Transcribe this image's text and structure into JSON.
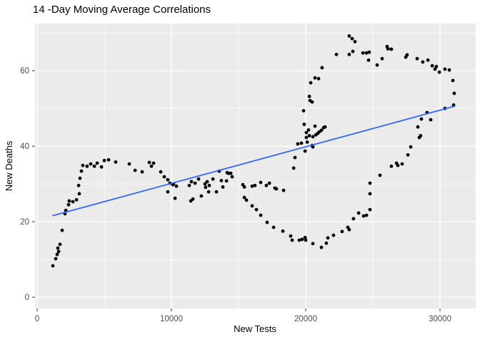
{
  "chart_data": {
    "type": "scatter",
    "title": "14 -Day Moving Average Correlations",
    "xlabel": "New Tests",
    "ylabel": "New Deaths",
    "legend": "none",
    "grid": "major+minor",
    "xlim": [
      -160,
      32660
    ],
    "ylim": [
      -3,
      72.5
    ],
    "x_ticks": [
      0,
      10000,
      20000,
      30000
    ],
    "x_tick_labels": [
      "0",
      "10000",
      "20000",
      "30000"
    ],
    "y_ticks": [
      0,
      20,
      40,
      60
    ],
    "y_tick_labels": [
      "0",
      "20",
      "40",
      "60"
    ],
    "x_minor_ticks": [
      5000,
      15000,
      25000
    ],
    "y_minor_ticks": [
      10,
      30,
      50,
      70
    ],
    "colors": {
      "background": "#FFFFFF",
      "panel_bg": "#EBEBEB",
      "grid_major": "#FFFFFF",
      "grid_minor": "#FFFFFF",
      "point": "#000000",
      "trend_line": "#3366FF",
      "tick_mark": "#333333",
      "tick_text": "#4D4D4D",
      "axis_title": "#000000",
      "title": "#000000"
    },
    "trend_line": {
      "type": "linear",
      "x": [
        1170,
        31100
      ],
      "y": [
        21.6,
        50.6
      ]
    },
    "points": [
      [
        1170,
        8.3
      ],
      [
        1380,
        10.2
      ],
      [
        1490,
        11.3
      ],
      [
        1540,
        13.0
      ],
      [
        1600,
        12.1
      ],
      [
        1700,
        14.0
      ],
      [
        1860,
        17.7
      ],
      [
        2070,
        22.1
      ],
      [
        2130,
        23.0
      ],
      [
        2340,
        24.5
      ],
      [
        2390,
        25.5
      ],
      [
        2660,
        25.3
      ],
      [
        2930,
        25.8
      ],
      [
        3140,
        27.4
      ],
      [
        3090,
        29.6
      ],
      [
        3190,
        31.5
      ],
      [
        3300,
        33.4
      ],
      [
        3400,
        34.9
      ],
      [
        3720,
        34.7
      ],
      [
        3990,
        35.3
      ],
      [
        4260,
        34.7
      ],
      [
        4470,
        35.5
      ],
      [
        4790,
        34.5
      ],
      [
        5000,
        36.2
      ],
      [
        5320,
        36.4
      ],
      [
        5850,
        35.8
      ],
      [
        6860,
        35.3
      ],
      [
        7290,
        33.6
      ],
      [
        7820,
        33.2
      ],
      [
        8350,
        35.7
      ],
      [
        8510,
        34.7
      ],
      [
        8670,
        35.5
      ],
      [
        9200,
        33.2
      ],
      [
        9470,
        31.9
      ],
      [
        9730,
        31.1
      ],
      [
        9890,
        30.2
      ],
      [
        10110,
        29.8
      ],
      [
        10160,
        30.0
      ],
      [
        10370,
        29.4
      ],
      [
        9730,
        27.9
      ],
      [
        10270,
        26.2
      ],
      [
        11330,
        29.6
      ],
      [
        11490,
        30.6
      ],
      [
        11440,
        25.5
      ],
      [
        11600,
        26.0
      ],
      [
        11760,
        30.2
      ],
      [
        12020,
        31.3
      ],
      [
        12230,
        26.8
      ],
      [
        12500,
        30.0
      ],
      [
        12550,
        29.1
      ],
      [
        12660,
        30.6
      ],
      [
        12770,
        27.9
      ],
      [
        12820,
        29.6
      ],
      [
        13090,
        31.3
      ],
      [
        13350,
        27.9
      ],
      [
        13560,
        33.4
      ],
      [
        13720,
        30.9
      ],
      [
        13830,
        29.2
      ],
      [
        14100,
        30.8
      ],
      [
        14150,
        33.0
      ],
      [
        14260,
        32.8
      ],
      [
        14420,
        32.8
      ],
      [
        14520,
        31.9
      ],
      [
        15320,
        29.8
      ],
      [
        15430,
        29.2
      ],
      [
        15430,
        26.4
      ],
      [
        15590,
        25.7
      ],
      [
        16010,
        29.4
      ],
      [
        16220,
        29.6
      ],
      [
        16650,
        30.4
      ],
      [
        17070,
        29.6
      ],
      [
        17290,
        30.2
      ],
      [
        17710,
        28.9
      ],
      [
        17820,
        28.7
      ],
      [
        18350,
        28.3
      ],
      [
        16010,
        24.2
      ],
      [
        16330,
        23.2
      ],
      [
        16650,
        21.7
      ],
      [
        17130,
        19.8
      ],
      [
        17610,
        18.5
      ],
      [
        18300,
        17.5
      ],
      [
        18880,
        16.2
      ],
      [
        18990,
        15.1
      ],
      [
        19520,
        15.1
      ],
      [
        19730,
        15.3
      ],
      [
        19950,
        15.8
      ],
      [
        20000,
        15.1
      ],
      [
        20530,
        14.2
      ],
      [
        21170,
        13.2
      ],
      [
        21540,
        14.3
      ],
      [
        21650,
        15.7
      ],
      [
        22070,
        16.4
      ],
      [
        22710,
        17.4
      ],
      [
        23140,
        18.5
      ],
      [
        23240,
        17.9
      ],
      [
        23560,
        20.8
      ],
      [
        23940,
        22.3
      ],
      [
        24310,
        21.5
      ],
      [
        24520,
        21.7
      ],
      [
        24790,
        23.2
      ],
      [
        24790,
        27.4
      ],
      [
        24790,
        30.2
      ],
      [
        25530,
        32.3
      ],
      [
        26380,
        34.7
      ],
      [
        26760,
        35.5
      ],
      [
        26860,
        34.9
      ],
      [
        27180,
        35.3
      ],
      [
        27610,
        37.7
      ],
      [
        27820,
        39.8
      ],
      [
        28460,
        42.3
      ],
      [
        28560,
        42.8
      ],
      [
        28350,
        45.1
      ],
      [
        28620,
        47.2
      ],
      [
        29040,
        48.9
      ],
      [
        29310,
        47.0
      ],
      [
        30370,
        50.0
      ],
      [
        31010,
        50.9
      ],
      [
        31060,
        54.0
      ],
      [
        19100,
        34.2
      ],
      [
        19200,
        37.0
      ],
      [
        19410,
        40.6
      ],
      [
        19680,
        40.8
      ],
      [
        20110,
        41.1
      ],
      [
        19950,
        38.7
      ],
      [
        20480,
        40.2
      ],
      [
        20530,
        39.8
      ],
      [
        19890,
        45.8
      ],
      [
        19840,
        49.4
      ],
      [
        20050,
        43.6
      ],
      [
        20210,
        44.3
      ],
      [
        20270,
        42.8
      ],
      [
        20050,
        42.3
      ],
      [
        20690,
        45.3
      ],
      [
        20530,
        42.5
      ],
      [
        20750,
        43.0
      ],
      [
        20900,
        43.4
      ],
      [
        21010,
        43.8
      ],
      [
        21170,
        44.2
      ],
      [
        21330,
        44.9
      ],
      [
        21440,
        45.1
      ],
      [
        20270,
        53.2
      ],
      [
        20320,
        52.1
      ],
      [
        20480,
        51.7
      ],
      [
        20370,
        56.8
      ],
      [
        20690,
        58.1
      ],
      [
        20960,
        57.9
      ],
      [
        21220,
        60.8
      ],
      [
        22290,
        64.3
      ],
      [
        23240,
        69.2
      ],
      [
        23460,
        68.5
      ],
      [
        23670,
        67.7
      ],
      [
        23240,
        64.3
      ],
      [
        23510,
        65.1
      ],
      [
        24260,
        64.7
      ],
      [
        24520,
        64.7
      ],
      [
        24730,
        64.9
      ],
      [
        24680,
        62.8
      ],
      [
        25320,
        61.5
      ],
      [
        25690,
        63.2
      ],
      [
        26060,
        66.4
      ],
      [
        26120,
        65.8
      ],
      [
        26380,
        65.7
      ],
      [
        27450,
        63.6
      ],
      [
        27550,
        64.2
      ],
      [
        28300,
        63.2
      ],
      [
        28720,
        62.3
      ],
      [
        29100,
        62.8
      ],
      [
        29420,
        61.3
      ],
      [
        29730,
        61.1
      ],
      [
        29630,
        60.4
      ],
      [
        29950,
        59.6
      ],
      [
        30370,
        60.4
      ],
      [
        30690,
        60.2
      ],
      [
        30960,
        57.4
      ]
    ]
  }
}
